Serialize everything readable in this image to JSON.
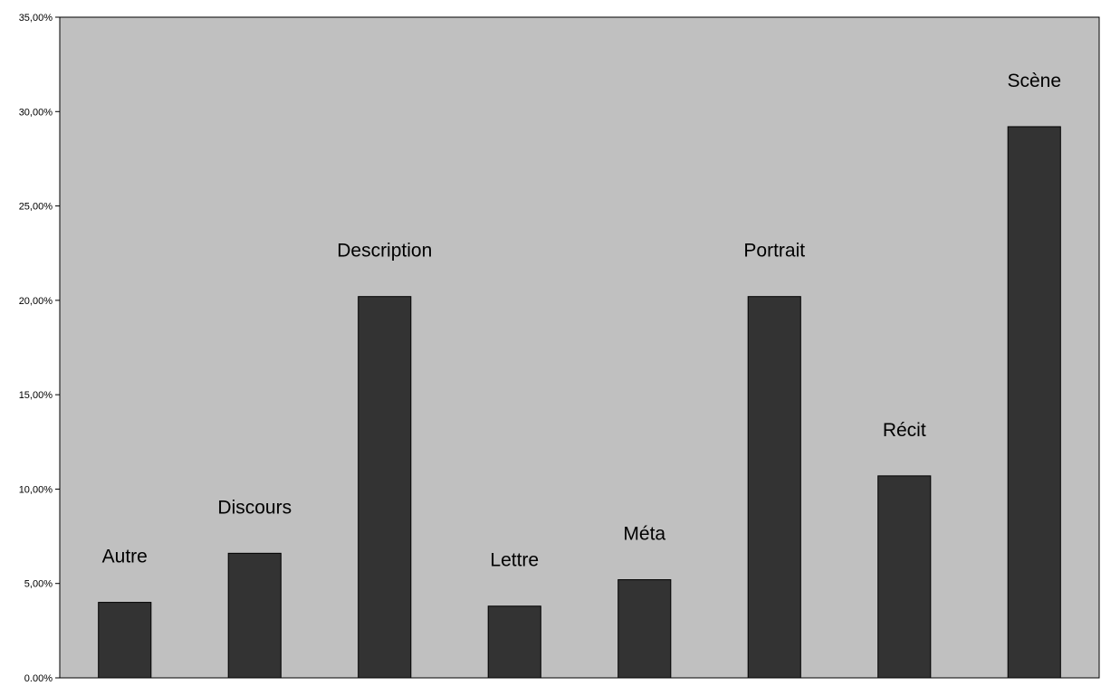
{
  "chart_data": {
    "type": "bar",
    "categories": [
      "Autre",
      "Discours",
      "Description",
      "Lettre",
      "Méta",
      "Portrait",
      "Récit",
      "Scène"
    ],
    "values": [
      4.0,
      6.6,
      20.2,
      3.8,
      5.2,
      20.2,
      10.7,
      29.2
    ],
    "title": "",
    "xlabel": "",
    "ylabel": "",
    "ylim": [
      0,
      35
    ],
    "yticks": [
      "0,00%",
      "5,00%",
      "10,00%",
      "15,00%",
      "20,00%",
      "25,00%",
      "30,00%",
      "35,00%"
    ],
    "grid": false,
    "legend": "none",
    "data_labels": "category names above bars",
    "colors": {
      "plot_background": "#c0c0c0",
      "bar_fill": "#333333",
      "bar_stroke": "#000000",
      "axis": "#000000"
    }
  }
}
